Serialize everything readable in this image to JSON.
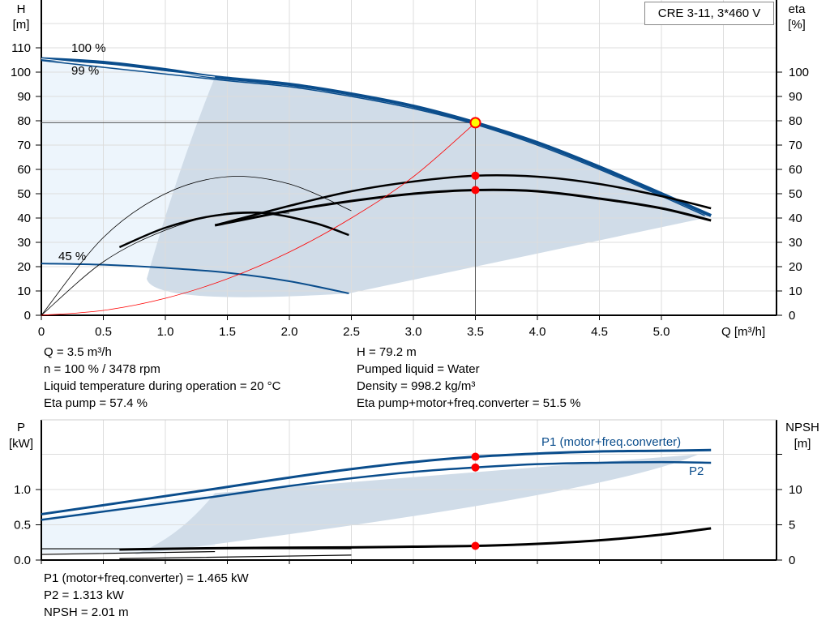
{
  "legend_box": "CRE 3-11, 3*460 V",
  "info_left": [
    "Q = 3.5 m³/h",
    "n = 100 % / 3478 rpm",
    "Liquid temperature during operation = 20 °C",
    "Eta pump = 57.4 %"
  ],
  "info_right": [
    "H = 79.2 m",
    "Pumped liquid = Water",
    "Density = 998.2 kg/m³",
    "Eta pump+motor+freq.converter = 51.5 %"
  ],
  "info_bottom": [
    "P1 (motor+freq.converter) = 1.465 kW",
    "P2 = 1.313 kW",
    "NPSH = 2.01 m"
  ],
  "colors": {
    "curve": "#0a4d8c",
    "fill": "#d0dce8",
    "fill_light": "#edf5fc",
    "system": "#ff0000",
    "marker": "#ff0000",
    "duty": "#ffff00"
  },
  "chart_data": [
    {
      "type": "line",
      "ylabel": "H\n[m]",
      "ylabel_right": "eta\n[%]",
      "xlabel": "Q [m³/h]",
      "xlim": [
        0,
        5.6
      ],
      "ylim": [
        0,
        110
      ],
      "grid": true,
      "x_ticks": [
        "0",
        "0.5",
        "1.0",
        "1.5",
        "2.0",
        "2.5",
        "3.0",
        "3.5",
        "4.0",
        "4.5",
        "5.0"
      ],
      "y_ticks": [
        "0",
        "10",
        "20",
        "30",
        "40",
        "50",
        "60",
        "70",
        "80",
        "90",
        "100",
        "110"
      ],
      "y_right_ticks": [
        "0",
        "10",
        "20",
        "30",
        "40",
        "50",
        "60",
        "70",
        "80",
        "90",
        "100"
      ],
      "annotations": [
        "100 %",
        "99 %",
        "45 %"
      ],
      "series": [
        {
          "id": "H100",
          "x": [
            0,
            0.5,
            1,
            1.4,
            2,
            2.5,
            3,
            3.5,
            4,
            4.5,
            5,
            5.4
          ],
          "y": [
            105.5,
            104,
            101,
            98,
            95,
            91,
            86,
            79.2,
            71,
            61,
            50,
            41
          ]
        },
        {
          "id": "H99",
          "x": [
            0,
            1.4,
            2,
            2.5,
            3,
            3.5,
            4,
            4.5,
            5,
            5.35
          ],
          "y": [
            104.8,
            97,
            94,
            90,
            85,
            78.5,
            70,
            60,
            49,
            41
          ]
        },
        {
          "id": "H45",
          "x": [
            0,
            0.5,
            1,
            1.5,
            2,
            2.48
          ],
          "y": [
            21.3,
            20.8,
            19.5,
            17.5,
            14,
            9
          ]
        },
        {
          "id": "eta_pump",
          "x": [
            1.4,
            2,
            2.5,
            3,
            3.5,
            4,
            4.5,
            5,
            5.4
          ],
          "y": [
            37,
            45,
            51,
            55,
            57.4,
            57,
            54,
            49,
            44
          ]
        },
        {
          "id": "eta_total",
          "x": [
            1.4,
            2,
            2.5,
            3,
            3.5,
            4,
            4.5,
            5,
            5.4
          ],
          "y": [
            37,
            43,
            47,
            50,
            51.5,
            51,
            48,
            44,
            39
          ]
        },
        {
          "id": "eta_pump_45",
          "x": [
            0.63,
            1,
            1.4,
            1.8,
            2.2,
            2.48
          ],
          "y": [
            28,
            36,
            41,
            42,
            38,
            33
          ]
        },
        {
          "id": "eta_thin_1",
          "x": [
            0,
            0.5,
            1,
            1.5,
            2,
            2.5
          ],
          "y": [
            0,
            32,
            50,
            57,
            54,
            43
          ]
        },
        {
          "id": "eta_thin_2",
          "x": [
            0,
            0.5,
            1,
            1.5,
            2
          ],
          "y": [
            0,
            22,
            35,
            42,
            42
          ]
        },
        {
          "id": "system",
          "x": [
            0,
            0.5,
            1,
            1.5,
            2,
            2.5,
            3,
            3.5
          ],
          "y": [
            0,
            2,
            7,
            15,
            26,
            40,
            57,
            79.2
          ]
        }
      ],
      "points": [
        {
          "x": 3.5,
          "y": 79.2
        },
        {
          "x": 3.5,
          "y": 57.4
        },
        {
          "x": 3.5,
          "y": 51.5
        }
      ]
    },
    {
      "type": "line",
      "ylabel": "P\n[kW]",
      "ylabel_right": "NPSH\n[m]",
      "xlim": [
        0,
        5.6
      ],
      "ylim": [
        0,
        1.6
      ],
      "grid": true,
      "y_ticks": [
        "0.0",
        "0.5",
        "1.0"
      ],
      "y_right_ticks": [
        "0",
        "5",
        "10"
      ],
      "series": [
        {
          "name": "P1 (motor+freq.converter)",
          "x": [
            0,
            1.4,
            2,
            2.5,
            3,
            3.5,
            4,
            4.5,
            5,
            5.4
          ],
          "y": [
            0.65,
            1.01,
            1.17,
            1.29,
            1.39,
            1.465,
            1.51,
            1.54,
            1.55,
            1.56
          ]
        },
        {
          "name": "P2",
          "x": [
            0,
            1.4,
            2,
            2.5,
            3,
            3.5,
            4,
            4.5,
            5,
            5.4
          ],
          "y": [
            0.57,
            0.9,
            1.05,
            1.16,
            1.25,
            1.313,
            1.36,
            1.38,
            1.39,
            1.38
          ]
        },
        {
          "id": "NPSH",
          "x": [
            0.63,
            1,
            1.5,
            2,
            2.5,
            3,
            3.5,
            4,
            4.5,
            5,
            5.4
          ],
          "y": [
            1.5,
            1.6,
            1.7,
            1.75,
            1.8,
            1.9,
            2.01,
            2.3,
            2.8,
            3.6,
            4.5
          ]
        }
      ],
      "points": [
        {
          "x": 3.5,
          "y": 1.465
        },
        {
          "x": 3.5,
          "y": 1.313
        },
        {
          "x": 3.5,
          "y_npsh": 2.01
        }
      ]
    }
  ]
}
